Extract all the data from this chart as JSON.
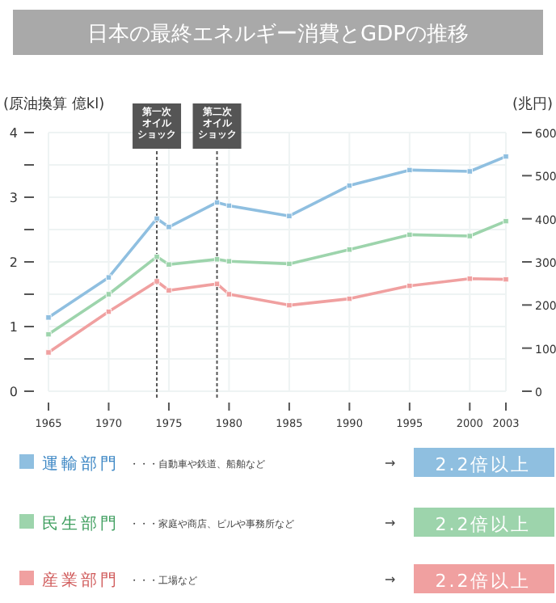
{
  "chart_data": {
    "type": "line",
    "title": "日本の最終エネルギー消費とGDPの推移",
    "ylabel": "(原油換算 億kl)",
    "y2label": "(兆円)",
    "x": [
      1965,
      1970,
      1974,
      1975,
      1979,
      1980,
      1985,
      1990,
      1995,
      2000,
      2003
    ],
    "xlim": [
      1965,
      2003
    ],
    "xticks": [
      1965,
      1970,
      1975,
      1980,
      1985,
      1990,
      1995,
      2000,
      2003
    ],
    "ylim": [
      0,
      4
    ],
    "yticks": [
      0,
      {
        "value": 0.5,
        "label": null
      },
      1,
      {
        "value": 1.5,
        "label": null
      },
      2,
      {
        "value": 2.5,
        "label": null
      },
      3,
      {
        "value": 3.5,
        "label": null
      },
      4
    ],
    "y2lim": [
      0,
      600
    ],
    "y2ticks": [
      0,
      100,
      200,
      300,
      400,
      500,
      600
    ],
    "series": [
      {
        "name": "運輸部門",
        "color": "#8fbfe0",
        "values": [
          1.14,
          1.76,
          2.67,
          2.54,
          2.92,
          2.87,
          2.71,
          3.18,
          3.42,
          3.4,
          3.63
        ]
      },
      {
        "name": "民生部門",
        "color": "#9dd4ac",
        "values": [
          0.88,
          1.5,
          2.08,
          1.96,
          2.04,
          2.01,
          1.97,
          2.19,
          2.42,
          2.4,
          2.63
        ]
      },
      {
        "name": "産業部門",
        "color": "#f0a0a0",
        "values": [
          0.6,
          1.23,
          1.7,
          1.56,
          1.66,
          1.5,
          1.33,
          1.43,
          1.63,
          1.74,
          1.73
        ]
      }
    ],
    "marker": "square",
    "grid": true,
    "legend": "bottom",
    "ref_lines": [
      {
        "axis": "x",
        "value": 1974,
        "label": "第一次オイルショック",
        "color": "#555555",
        "line_style": "dotted"
      },
      {
        "axis": "x",
        "value": 1979,
        "label": "第二次オイルショック",
        "color": "#555555",
        "line_style": "dotted"
      }
    ],
    "annotations": [
      "・・・自動車や鉄道、船舶など",
      "→ 2.2倍以上",
      "・・・家庭や商店、ビルや事務所など",
      "→ 2.2倍以上",
      "・・・工場など",
      "→ 2.2倍以上"
    ]
  }
}
